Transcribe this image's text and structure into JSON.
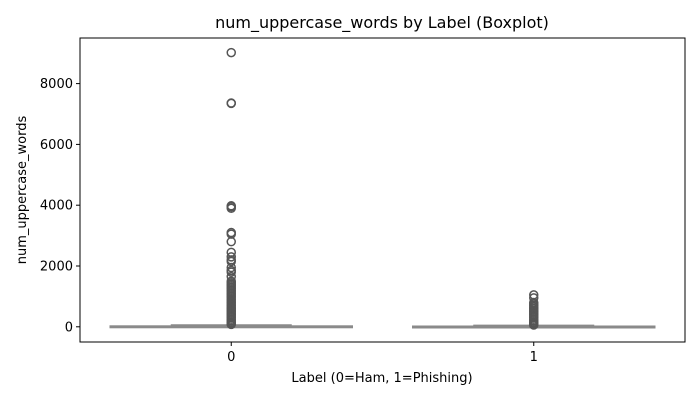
{
  "chart_data": {
    "type": "boxplot",
    "title": "num_uppercase_words by Label (Boxplot)",
    "xlabel": "Label (0=Ham, 1=Phishing)",
    "ylabel": "num_uppercase_words",
    "categories": [
      "0",
      "1"
    ],
    "ylim": [
      -500,
      9500
    ],
    "yticks": [
      0,
      2000,
      4000,
      6000,
      8000
    ],
    "grid": false,
    "box_color": "#8a8a8a",
    "series": [
      {
        "category": "0",
        "whisker_low": 0,
        "q1": 5,
        "median": 10,
        "q3": 25,
        "whisker_high": 60,
        "outliers": [
          9020,
          7360,
          7350,
          3980,
          3950,
          3900,
          3100,
          3050,
          2800,
          2450,
          2300,
          2200,
          2150,
          1950,
          1850,
          1800,
          1650,
          1500,
          1450,
          1400,
          1350,
          1300,
          1250,
          1200,
          1150,
          1100,
          1050,
          1000,
          950,
          900,
          850,
          800,
          750,
          700,
          650,
          600,
          550,
          500,
          450,
          400,
          350,
          300,
          250,
          200,
          150,
          120,
          100,
          80
        ]
      },
      {
        "category": "1",
        "whisker_low": 0,
        "q1": 3,
        "median": 7,
        "q3": 18,
        "whisker_high": 45,
        "outliers": [
          1050,
          950,
          800,
          750,
          700,
          650,
          600,
          550,
          500,
          450,
          400,
          350,
          300,
          250,
          200,
          150,
          120,
          100,
          80,
          60
        ]
      }
    ]
  }
}
